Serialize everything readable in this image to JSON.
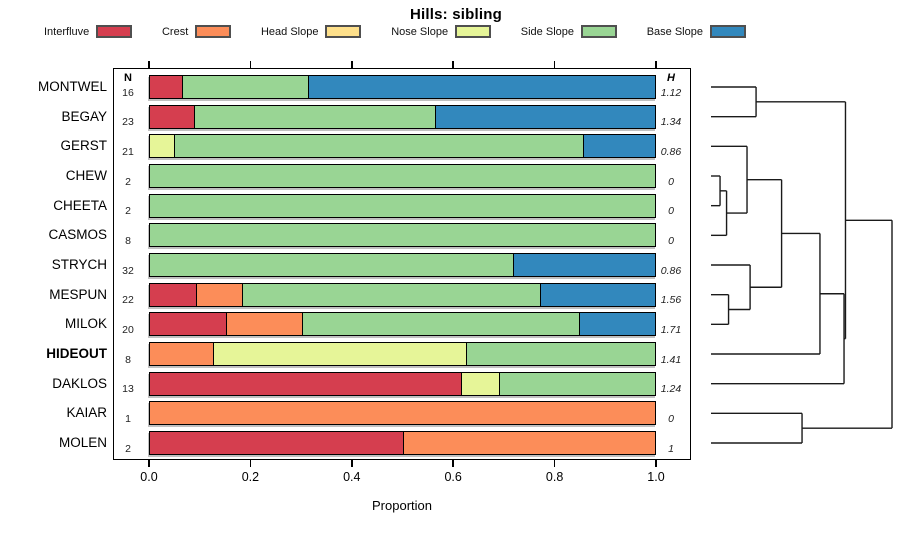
{
  "title": "Hills: sibling",
  "xlabel": "Proportion",
  "columns": {
    "n_header": "N",
    "h_header": "H"
  },
  "legend": [
    {
      "label": "Interfluve",
      "color": "#D53E4F"
    },
    {
      "label": "Crest",
      "color": "#FC8D59"
    },
    {
      "label": "Head Slope",
      "color": "#FEE08B"
    },
    {
      "label": "Nose Slope",
      "color": "#E6F598"
    },
    {
      "label": "Side Slope",
      "color": "#99D594"
    },
    {
      "label": "Base Slope",
      "color": "#3288BD"
    }
  ],
  "axis": {
    "tick_labels": [
      "0.0",
      "0.2",
      "0.4",
      "0.6",
      "0.8",
      "1.0"
    ],
    "tick_values": [
      0.0,
      0.2,
      0.4,
      0.6,
      0.8,
      1.0
    ],
    "range": [
      0,
      1
    ]
  },
  "chart_data": {
    "type": "bar",
    "orientation": "horizontal-stacked",
    "rows": [
      {
        "name": "MONTWEL",
        "n": 16,
        "h": "1.12",
        "bold": false,
        "segments": [
          [
            "Interfluve",
            0.0625
          ],
          [
            "Side Slope",
            0.25
          ],
          [
            "Base Slope",
            0.6875
          ]
        ]
      },
      {
        "name": "BEGAY",
        "n": 23,
        "h": "1.34",
        "bold": false,
        "segments": [
          [
            "Interfluve",
            0.087
          ],
          [
            "Side Slope",
            0.478
          ],
          [
            "Base Slope",
            0.435
          ]
        ]
      },
      {
        "name": "GERST",
        "n": 21,
        "h": "0.86",
        "bold": false,
        "segments": [
          [
            "Nose Slope",
            0.048
          ],
          [
            "Side Slope",
            0.809
          ],
          [
            "Base Slope",
            0.143
          ]
        ]
      },
      {
        "name": "CHEW",
        "n": 2,
        "h": "0",
        "bold": false,
        "segments": [
          [
            "Side Slope",
            1
          ]
        ]
      },
      {
        "name": "CHEETA",
        "n": 2,
        "h": "0",
        "bold": false,
        "segments": [
          [
            "Side Slope",
            1
          ]
        ]
      },
      {
        "name": "CASMOS",
        "n": 8,
        "h": "0",
        "bold": false,
        "segments": [
          [
            "Side Slope",
            1
          ]
        ]
      },
      {
        "name": "STRYCH",
        "n": 32,
        "h": "0.86",
        "bold": false,
        "segments": [
          [
            "Side Slope",
            0.719
          ],
          [
            "Base Slope",
            0.281
          ]
        ]
      },
      {
        "name": "MESPUN",
        "n": 22,
        "h": "1.56",
        "bold": false,
        "segments": [
          [
            "Interfluve",
            0.091
          ],
          [
            "Crest",
            0.091
          ],
          [
            "Side Slope",
            0.591
          ],
          [
            "Base Slope",
            0.227
          ]
        ]
      },
      {
        "name": "MILOK",
        "n": 20,
        "h": "1.71",
        "bold": false,
        "segments": [
          [
            "Interfluve",
            0.15
          ],
          [
            "Crest",
            0.15
          ],
          [
            "Side Slope",
            0.55
          ],
          [
            "Base Slope",
            0.15
          ]
        ]
      },
      {
        "name": "HIDEOUT",
        "n": 8,
        "h": "1.41",
        "bold": true,
        "segments": [
          [
            "Crest",
            0.125
          ],
          [
            "Nose Slope",
            0.5
          ],
          [
            "Side Slope",
            0.375
          ]
        ]
      },
      {
        "name": "DAKLOS",
        "n": 13,
        "h": "1.24",
        "bold": false,
        "segments": [
          [
            "Interfluve",
            0.615
          ],
          [
            "Nose Slope",
            0.077
          ],
          [
            "Side Slope",
            0.308
          ]
        ]
      },
      {
        "name": "KAIAR",
        "n": 1,
        "h": "0",
        "bold": false,
        "segments": [
          [
            "Crest",
            1
          ]
        ]
      },
      {
        "name": "MOLEN",
        "n": 2,
        "h": "1",
        "bold": false,
        "segments": [
          [
            "Interfluve",
            0.5
          ],
          [
            "Crest",
            0.5
          ]
        ]
      }
    ],
    "dendrogram": {
      "merges": [
        {
          "id": "c1",
          "a": "CHEW",
          "b": "CHEETA",
          "h": 0.05
        },
        {
          "id": "c2",
          "a": "c1",
          "b": "CASMOS",
          "h": 0.086
        },
        {
          "id": "c3",
          "a": "GERST",
          "b": "c2",
          "h": 0.199
        },
        {
          "id": "c4",
          "a": "MESPUN",
          "b": "MILOK",
          "h": 0.097
        },
        {
          "id": "c5",
          "a": "STRYCH",
          "b": "c4",
          "h": 0.216
        },
        {
          "id": "c6",
          "a": "c3",
          "b": "c5",
          "h": 0.39
        },
        {
          "id": "c7",
          "a": "c6",
          "b": "HIDEOUT",
          "h": 0.602
        },
        {
          "id": "c8",
          "a": "c7",
          "b": "DAKLOS",
          "h": 0.735
        },
        {
          "id": "c9",
          "a": "MONTWEL",
          "b": "BEGAY",
          "h": 0.249
        },
        {
          "id": "c10",
          "a": "c9",
          "b": "c8",
          "h": 0.743
        },
        {
          "id": "c11",
          "a": "KAIAR",
          "b": "MOLEN",
          "h": 0.503
        },
        {
          "id": "root",
          "a": "c10",
          "b": "c11",
          "h": 1.0
        }
      ]
    }
  }
}
